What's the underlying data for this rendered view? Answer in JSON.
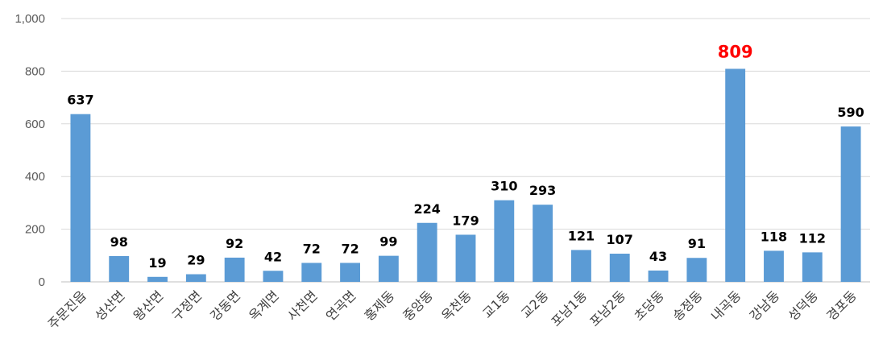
{
  "chart_data": {
    "type": "bar",
    "categories": [
      "주문진읍",
      "성산면",
      "왕산면",
      "구정면",
      "강동면",
      "옥계면",
      "사천면",
      "연곡면",
      "홍제동",
      "중앙동",
      "옥천동",
      "교1동",
      "교2동",
      "포남1동",
      "포남2동",
      "초당동",
      "송정동",
      "내곡동",
      "강남동",
      "성덕동",
      "경포동"
    ],
    "values": [
      637,
      98,
      19,
      29,
      92,
      42,
      72,
      72,
      99,
      224,
      179,
      310,
      293,
      121,
      107,
      43,
      91,
      809,
      118,
      112,
      590
    ],
    "data_labels": [
      "637",
      "98",
      "19",
      "29",
      "92",
      "42",
      "72",
      "72",
      "99",
      "224",
      "179",
      "310",
      "293",
      "121",
      "107",
      "43",
      "91",
      "809",
      "118",
      "112",
      "590"
    ],
    "highlight_index": 17,
    "ylim": [
      0,
      1000
    ],
    "yticks": [
      0,
      200,
      400,
      600,
      800,
      1000
    ],
    "ytick_labels": [
      "0",
      "200",
      "400",
      "600",
      "800",
      "1,000"
    ],
    "grid": true,
    "legend": "none",
    "colors": {
      "bar": "#5b9bd5",
      "highlight_label": "#ff0000",
      "grid": "#d9d9d9"
    }
  }
}
